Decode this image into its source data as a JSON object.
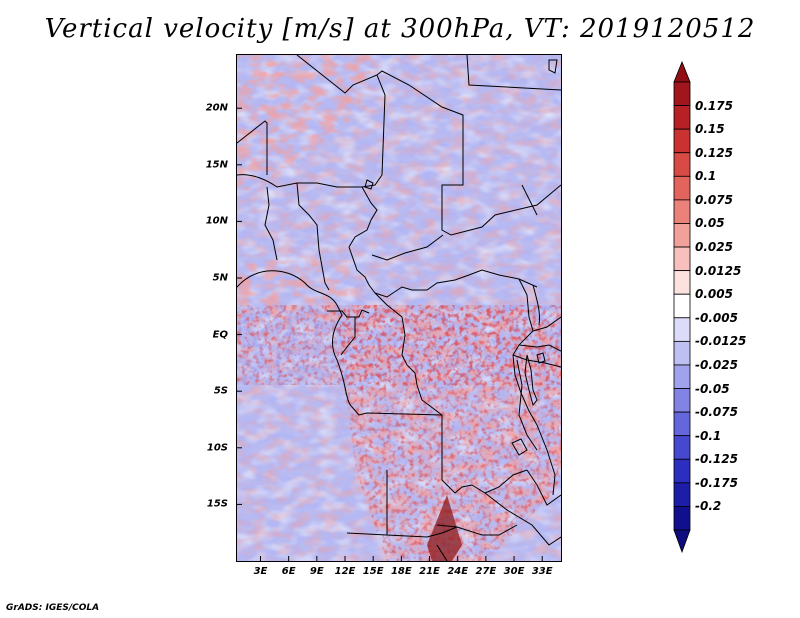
{
  "title": "Vertical velocity [m/s] at 300hPa, VT: 2019120512",
  "footer": "GrADS: IGES/COLA",
  "map": {
    "lat_labels": [
      "20N",
      "15N",
      "10N",
      "5N",
      "EQ",
      "5S",
      "10S",
      "15S"
    ],
    "lat_values": [
      20,
      15,
      10,
      5,
      0,
      -5,
      -10,
      -15
    ],
    "lon_labels": [
      "3E",
      "6E",
      "9E",
      "12E",
      "15E",
      "18E",
      "21E",
      "24E",
      "27E",
      "30E",
      "33E"
    ],
    "lon_values": [
      3,
      6,
      9,
      12,
      15,
      18,
      21,
      24,
      27,
      30,
      33
    ],
    "lat_range": [
      -20,
      24.7
    ],
    "lon_range": [
      0.5,
      35.0
    ]
  },
  "colorbar": {
    "labels": [
      "0.175",
      "0.15",
      "0.125",
      "0.1",
      "0.075",
      "0.05",
      "0.025",
      "0.0125",
      "0.005",
      "-0.005",
      "-0.0125",
      "-0.025",
      "-0.05",
      "-0.075",
      "-0.1",
      "-0.125",
      "-0.175",
      "-0.2"
    ],
    "colors": [
      "#a1161c",
      "#b72025",
      "#c93230",
      "#d84a44",
      "#e2645c",
      "#ea8279",
      "#f2a09a",
      "#f7c0bc",
      "#fbe2df",
      "#ffffff",
      "#dcdcf8",
      "#bfc0f2",
      "#a0a2ec",
      "#8284e4",
      "#6466dc",
      "#4648d0",
      "#2c2ec0",
      "#1c1ea8",
      "#10108f"
    ],
    "top_color": "#8f0f14",
    "bottom_color": "#0d0d80"
  }
}
